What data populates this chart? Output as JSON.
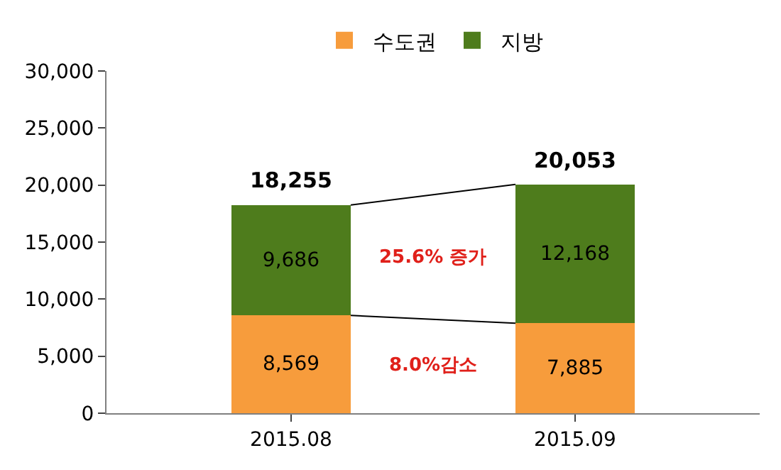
{
  "chart_data": {
    "type": "bar",
    "stacked": true,
    "categories": [
      "2015.08",
      "2015.09"
    ],
    "series": [
      {
        "name": "수도권",
        "color": "#f79c3c",
        "values": [
          8569,
          7885
        ],
        "value_labels": [
          "8,569",
          "7,885"
        ]
      },
      {
        "name": "지방",
        "color": "#4e7c1c",
        "values": [
          9686,
          12168
        ],
        "value_labels": [
          "9,686",
          "12,168"
        ]
      }
    ],
    "totals": [
      "18,255",
      "20,053"
    ],
    "annotations": [
      "25.6% 증가",
      "8.0%감소"
    ],
    "ylim": [
      0,
      30000
    ],
    "yticks": [
      0,
      {
        "value": 5000,
        "label": "5,000"
      },
      {
        "value": 10000,
        "label": "10,000"
      },
      {
        "value": 15000,
        "label": "15,000"
      },
      {
        "value": 20000,
        "label": "20,000"
      },
      {
        "value": 25000,
        "label": "25,000"
      },
      {
        "value": 30000,
        "label": "30,000"
      }
    ],
    "legend": "top"
  }
}
